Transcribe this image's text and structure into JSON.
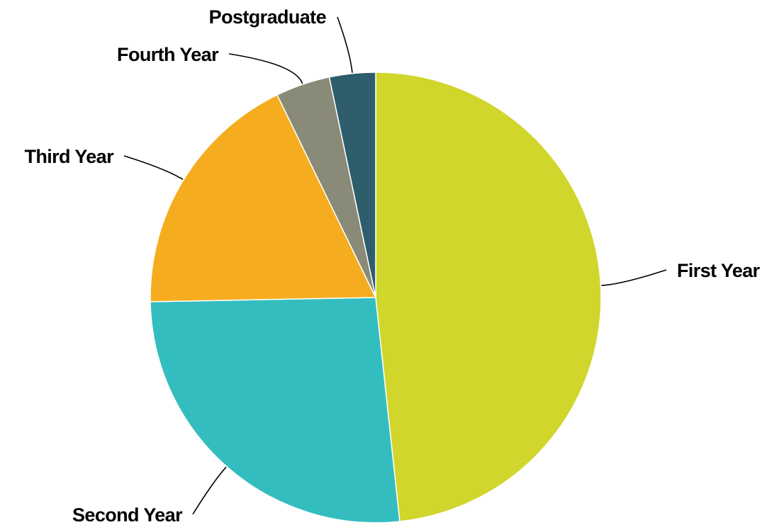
{
  "chart_data": {
    "type": "pie",
    "title": "",
    "start_angle_deg": 0,
    "direction": "clockwise",
    "slices": [
      {
        "label": "First Year",
        "value": 48.3,
        "color": "#d0d62b"
      },
      {
        "label": "Second Year",
        "value": 26.4,
        "color": "#34bdbf"
      },
      {
        "label": "Third Year",
        "value": 18.1,
        "color": "#f5ad1f"
      },
      {
        "label": "Fourth Year",
        "value": 3.9,
        "color": "#8a8a78"
      },
      {
        "label": "Postgraduate",
        "value": 3.3,
        "color": "#2e5d6b"
      }
    ]
  }
}
